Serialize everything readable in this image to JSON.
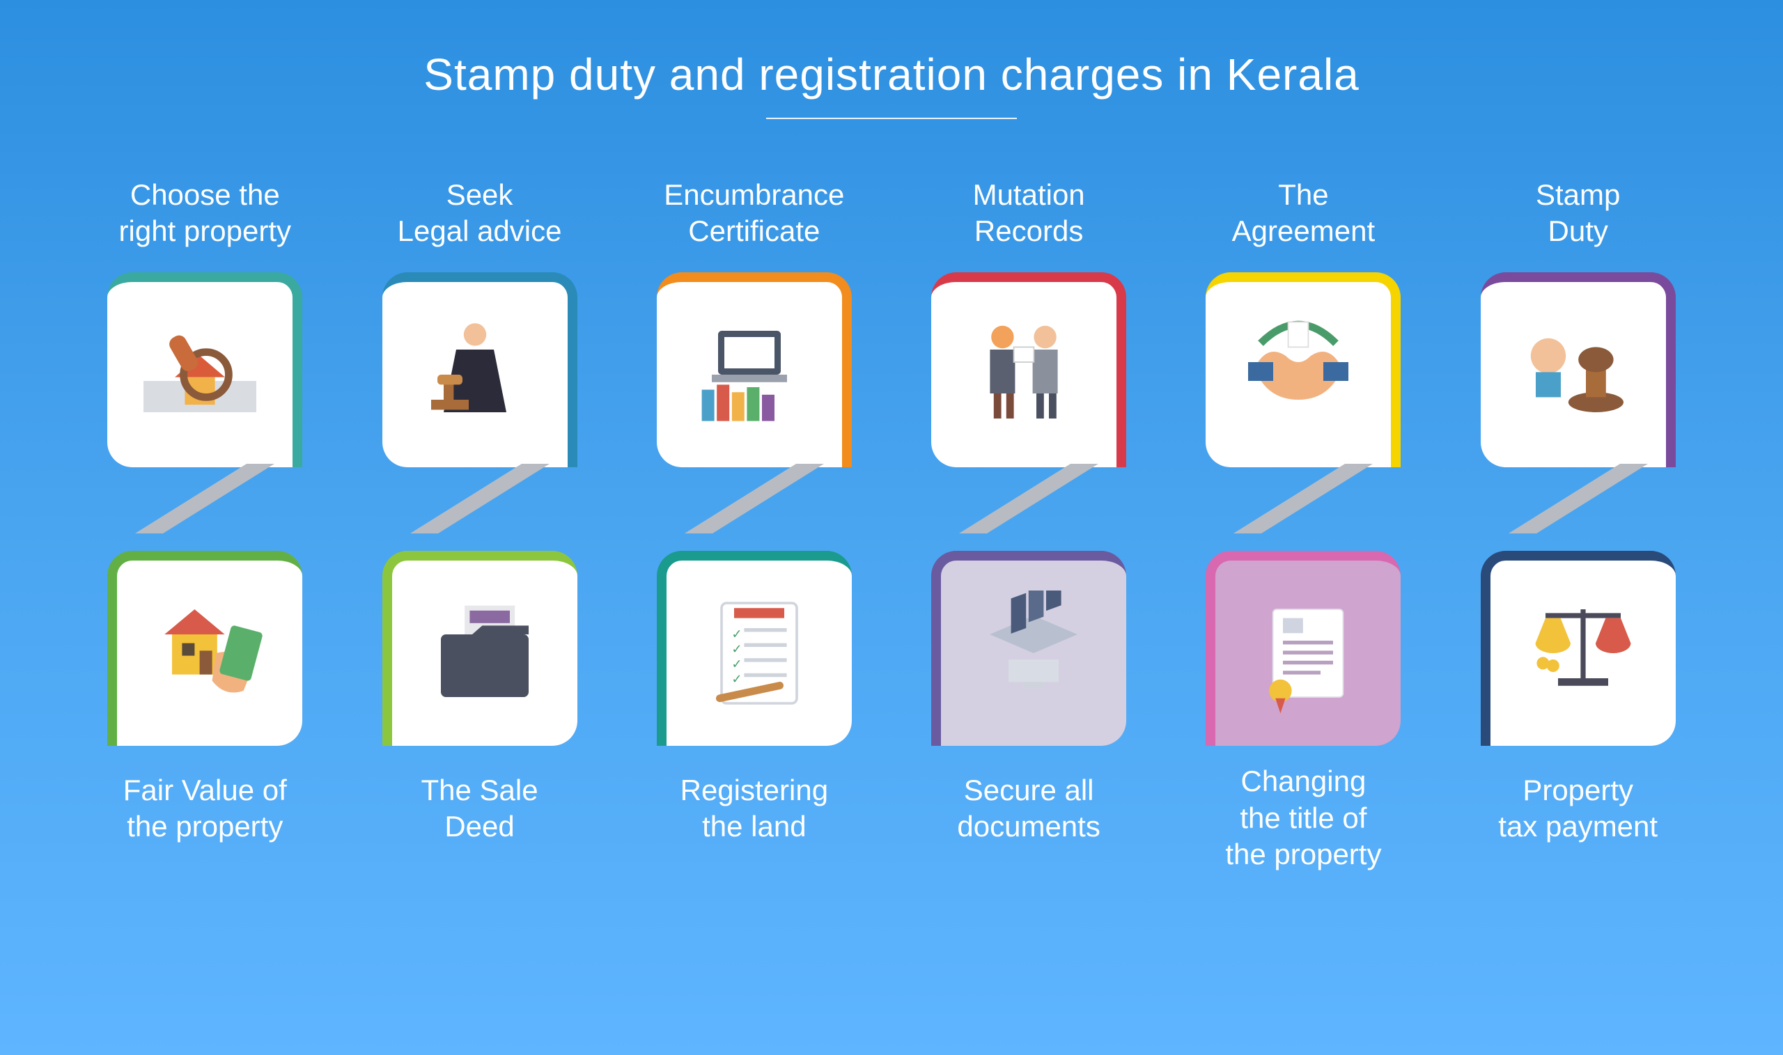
{
  "title": "Stamp duty and registration charges in Kerala",
  "background": {
    "from": "#2d8fe0",
    "to": "#5fb5ff"
  },
  "text_color": "#ffffff",
  "title_fontsize": 64,
  "label_fontsize": 42,
  "connector_color": "#b8bcc2",
  "columns": [
    {
      "top_label": "Choose the\nright property",
      "top_color": "#3aa9a0",
      "top_icon": "magnify-house",
      "bottom_label": "Fair Value of\nthe property",
      "bottom_color": "#62b045",
      "bottom_icon": "house-money"
    },
    {
      "top_label": "Seek\nLegal advice",
      "top_color": "#2a8bb8",
      "top_icon": "lawyer",
      "bottom_label": "The Sale\nDeed",
      "bottom_color": "#8cc63f",
      "bottom_icon": "folder-doc"
    },
    {
      "top_label": "Encumbrance\nCertificate",
      "top_color": "#f28c1c",
      "top_icon": "laptop-books",
      "bottom_label": "Registering\nthe land",
      "bottom_color": "#1a9b8e",
      "bottom_icon": "checklist"
    },
    {
      "top_label": "Mutation\nRecords",
      "top_color": "#d83a4a",
      "top_icon": "two-people",
      "bottom_label": "Secure all\ndocuments",
      "bottom_color": "#6a5aa0",
      "bottom_icon": "server-docs",
      "bottom_bg": "#d4d0e2"
    },
    {
      "top_label": "The\nAgreement",
      "top_color": "#f5d400",
      "top_icon": "handshake",
      "bottom_label": "Changing\nthe title of\nthe property",
      "bottom_color": "#d868b0",
      "bottom_icon": "certificate",
      "bottom_bg": "#cfa4cf"
    },
    {
      "top_label": "Stamp\nDuty",
      "top_color": "#7a4a9c",
      "top_icon": "stamp",
      "bottom_label": "Property\ntax payment",
      "bottom_color": "#2a4a7a",
      "bottom_icon": "scales"
    }
  ]
}
